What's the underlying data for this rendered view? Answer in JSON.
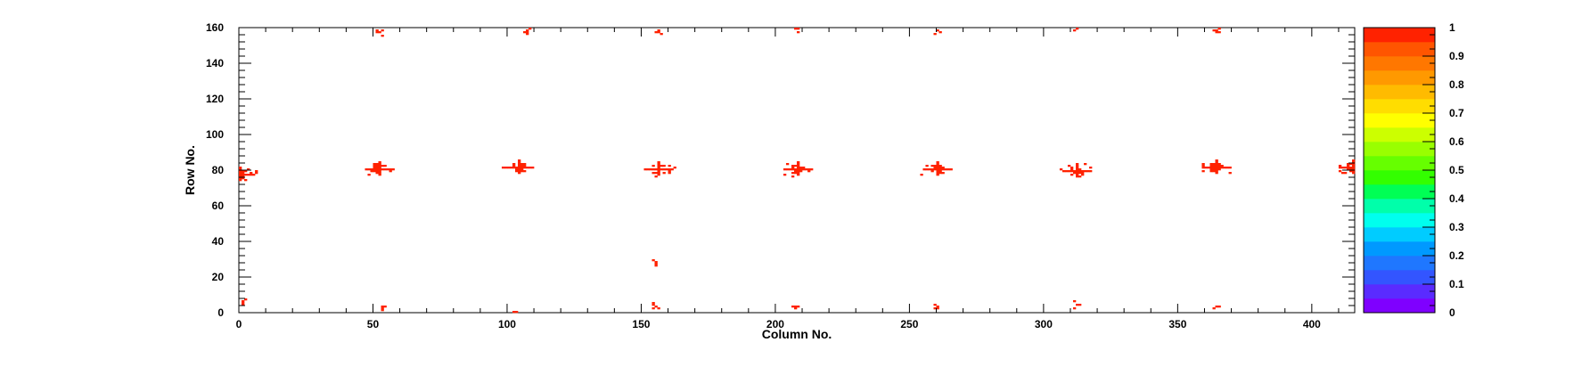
{
  "chart_data": {
    "type": "heatmap",
    "xlabel": "Column No.",
    "ylabel": "Row No.",
    "xlim": [
      0,
      416
    ],
    "ylim": [
      0,
      160
    ],
    "x_ticks": [
      0,
      50,
      100,
      150,
      200,
      250,
      300,
      350,
      400
    ],
    "y_ticks": [
      0,
      20,
      40,
      60,
      80,
      100,
      120,
      140,
      160
    ],
    "z_range": [
      0,
      1
    ],
    "z_ticks": [
      0,
      0.1,
      0.2,
      0.3,
      0.4,
      0.5,
      0.6,
      0.7,
      0.8,
      0.9,
      1
    ],
    "z_tick_labels": [
      "0",
      "0.1",
      "0.2",
      "0.3",
      "0.4",
      "0.5",
      "0.6",
      "0.7",
      "0.8",
      "0.9",
      "1"
    ],
    "palette": [
      "#7f00ff",
      "#5a2bff",
      "#3355ff",
      "#1f77ff",
      "#0099ff",
      "#00ccff",
      "#00ffee",
      "#00ffaa",
      "#00ff55",
      "#33ff00",
      "#66ff00",
      "#99ff00",
      "#ccff00",
      "#ffff00",
      "#ffdd00",
      "#ffbb00",
      "#ff9900",
      "#ff7700",
      "#ff5500",
      "#ff2200"
    ],
    "grid": false,
    "clusters": [
      {
        "col": 52,
        "row": 80,
        "value": 1
      },
      {
        "col": 104,
        "row": 81,
        "value": 1
      },
      {
        "col": 156,
        "row": 80,
        "value": 1
      },
      {
        "col": 208,
        "row": 80,
        "value": 1
      },
      {
        "col": 260,
        "row": 80,
        "value": 1
      },
      {
        "col": 312,
        "row": 79,
        "value": 1
      },
      {
        "col": 364,
        "row": 81,
        "value": 1
      },
      {
        "col": 0,
        "row": 77,
        "value": 1
      },
      {
        "col": 415,
        "row": 81,
        "value": 1
      }
    ],
    "edge_hits": [
      {
        "col": 52,
        "row": 157,
        "value": 1
      },
      {
        "col": 107,
        "row": 158,
        "value": 1
      },
      {
        "col": 156,
        "row": 158,
        "value": 1
      },
      {
        "col": 208,
        "row": 159,
        "value": 1
      },
      {
        "col": 260,
        "row": 158,
        "value": 1
      },
      {
        "col": 312,
        "row": 159,
        "value": 1
      },
      {
        "col": 364,
        "row": 158,
        "value": 1
      },
      {
        "col": 1,
        "row": 5,
        "value": 1
      },
      {
        "col": 53,
        "row": 1,
        "value": 1
      },
      {
        "col": 103,
        "row": 0,
        "value": 1
      },
      {
        "col": 155,
        "row": 3,
        "value": 1
      },
      {
        "col": 155,
        "row": 27,
        "value": 1
      },
      {
        "col": 207,
        "row": 2,
        "value": 1
      },
      {
        "col": 260,
        "row": 2,
        "value": 1
      },
      {
        "col": 312,
        "row": 4,
        "value": 1
      },
      {
        "col": 364,
        "row": 3,
        "value": 1
      }
    ]
  }
}
